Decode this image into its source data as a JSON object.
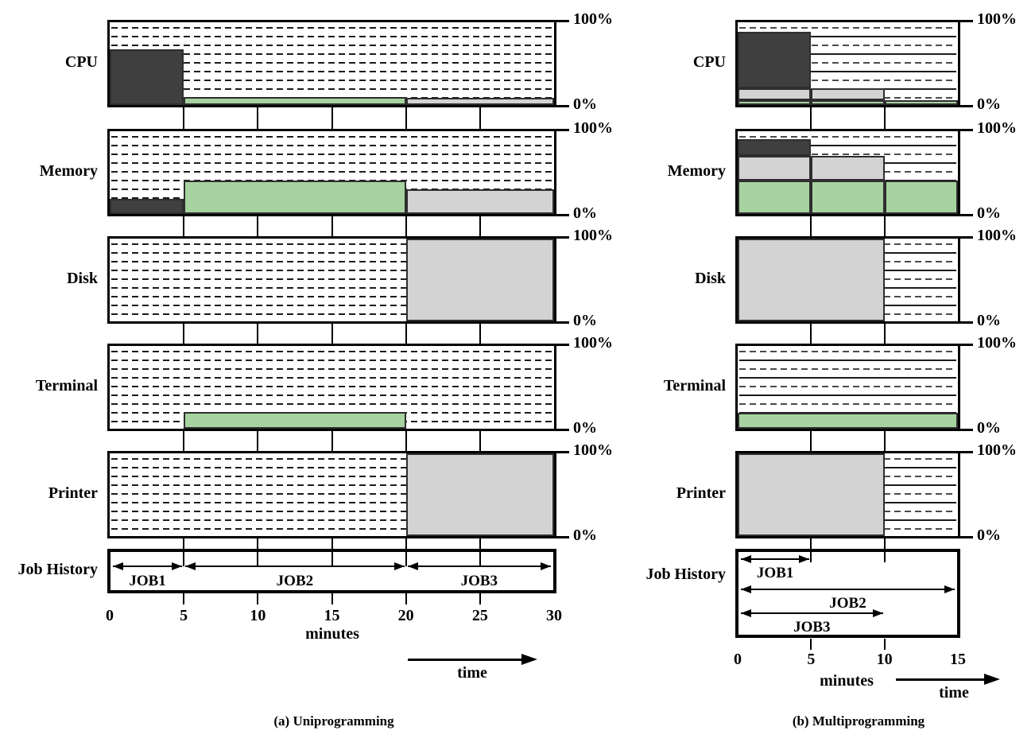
{
  "chart_data": [
    {
      "type": "area",
      "title": "(a) Uniprogramming",
      "xlabel": "minutes",
      "time_arrow_label": "time",
      "x_ticks": [
        0,
        5,
        10,
        15,
        20,
        25,
        30
      ],
      "xlim": [
        0,
        30
      ],
      "ylim": [
        0,
        100
      ],
      "y_tick_labels": {
        "top": "100%",
        "bottom": "0%"
      },
      "hatch": "dashed",
      "grid": false,
      "legend_position": "none",
      "jobs": [
        {
          "name": "JOB1",
          "color": "#3f3f3f"
        },
        {
          "name": "JOB2",
          "color": "#a7d3a0"
        },
        {
          "name": "JOB3",
          "color": "#d3d3d3"
        }
      ],
      "panels": [
        {
          "label": "CPU",
          "bars": [
            {
              "job": "JOB2",
              "start": 5,
              "end": 20,
              "from": 0,
              "to": 10
            },
            {
              "job": "JOB3",
              "start": 20,
              "end": 30,
              "from": 0,
              "to": 9
            },
            {
              "job": "JOB1",
              "start": 0,
              "end": 5,
              "from": 0,
              "to": 67
            }
          ]
        },
        {
          "label": "Memory",
          "bars": [
            {
              "job": "JOB1",
              "start": 0,
              "end": 5,
              "from": 0,
              "to": 18
            },
            {
              "job": "JOB2",
              "start": 5,
              "end": 20,
              "from": 0,
              "to": 40
            },
            {
              "job": "JOB3",
              "start": 20,
              "end": 30,
              "from": 0,
              "to": 30
            }
          ]
        },
        {
          "label": "Disk",
          "bars": [
            {
              "job": "JOB3",
              "start": 20,
              "end": 30,
              "from": 0,
              "to": 100
            }
          ]
        },
        {
          "label": "Terminal",
          "bars": [
            {
              "job": "JOB2",
              "start": 5,
              "end": 20,
              "from": 0,
              "to": 20
            }
          ]
        },
        {
          "label": "Printer",
          "bars": [
            {
              "job": "JOB3",
              "start": 20,
              "end": 30,
              "from": 0,
              "to": 100
            }
          ]
        }
      ],
      "job_history": {
        "label": "Job History",
        "arrows": [
          {
            "name": "JOB1",
            "start": 0,
            "end": 5,
            "row": 0
          },
          {
            "name": "JOB2",
            "start": 5,
            "end": 20,
            "row": 0
          },
          {
            "name": "JOB3",
            "start": 20,
            "end": 30,
            "row": 0
          }
        ]
      }
    },
    {
      "type": "area",
      "title": "(b) Multiprogramming",
      "xlabel": "minutes",
      "time_arrow_label": "time",
      "x_ticks": [
        0,
        5,
        10,
        15
      ],
      "xlim": [
        0,
        15
      ],
      "ylim": [
        0,
        100
      ],
      "y_tick_labels": {
        "top": "100%",
        "bottom": "0%"
      },
      "hatch": "lined",
      "grid": false,
      "legend_position": "none",
      "jobs": [
        {
          "name": "JOB1",
          "color": "#3f3f3f"
        },
        {
          "name": "JOB2",
          "color": "#a7d3a0"
        },
        {
          "name": "JOB3",
          "color": "#d3d3d3"
        }
      ],
      "panels": [
        {
          "label": "CPU",
          "bars": [
            {
              "job": "JOB2",
              "start": 0,
              "end": 5,
              "from": 0,
              "to": 6
            },
            {
              "job": "JOB2",
              "start": 5,
              "end": 10,
              "from": 0,
              "to": 6
            },
            {
              "job": "JOB2",
              "start": 10,
              "end": 15,
              "from": 0,
              "to": 6
            },
            {
              "job": "JOB3",
              "start": 0,
              "end": 5,
              "from": 6,
              "to": 20
            },
            {
              "job": "JOB3",
              "start": 5,
              "end": 10,
              "from": 6,
              "to": 20
            },
            {
              "job": "JOB1",
              "start": 0,
              "end": 5,
              "from": 20,
              "to": 88
            }
          ]
        },
        {
          "label": "Memory",
          "bars": [
            {
              "job": "JOB2",
              "start": 0,
              "end": 5,
              "from": 0,
              "to": 40
            },
            {
              "job": "JOB2",
              "start": 5,
              "end": 10,
              "from": 0,
              "to": 40
            },
            {
              "job": "JOB2",
              "start": 10,
              "end": 15,
              "from": 0,
              "to": 40
            },
            {
              "job": "JOB3",
              "start": 0,
              "end": 5,
              "from": 40,
              "to": 70
            },
            {
              "job": "JOB3",
              "start": 5,
              "end": 10,
              "from": 40,
              "to": 70
            },
            {
              "job": "JOB1",
              "start": 0,
              "end": 5,
              "from": 70,
              "to": 90
            }
          ]
        },
        {
          "label": "Disk",
          "bars": [
            {
              "job": "JOB3",
              "start": 0,
              "end": 10,
              "from": 0,
              "to": 100
            }
          ]
        },
        {
          "label": "Terminal",
          "bars": [
            {
              "job": "JOB2",
              "start": 0,
              "end": 15,
              "from": 0,
              "to": 19
            }
          ]
        },
        {
          "label": "Printer",
          "bars": [
            {
              "job": "JOB3",
              "start": 0,
              "end": 10,
              "from": 0,
              "to": 100
            }
          ]
        }
      ],
      "job_history": {
        "label": "Job History",
        "arrows": [
          {
            "name": "JOB1",
            "start": 0,
            "end": 5,
            "row": 0
          },
          {
            "name": "JOB2",
            "start": 0,
            "end": 15,
            "row": 1
          },
          {
            "name": "JOB3",
            "start": 0,
            "end": 10,
            "row": 2
          }
        ]
      }
    }
  ]
}
